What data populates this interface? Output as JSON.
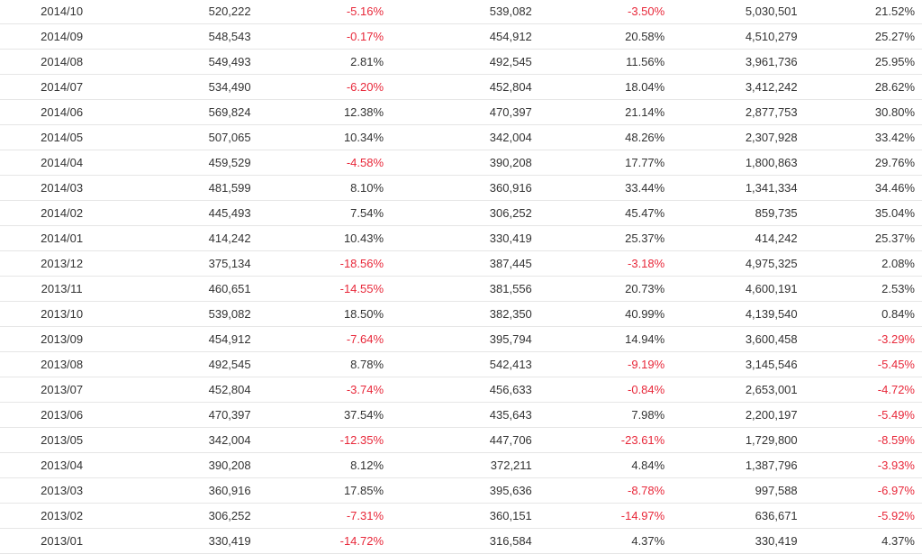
{
  "table": {
    "rows": [
      [
        "2014/10",
        "520,222",
        "-5.16%",
        "539,082",
        "-3.50%",
        "5,030,501",
        "21.52%"
      ],
      [
        "2014/09",
        "548,543",
        "-0.17%",
        "454,912",
        "20.58%",
        "4,510,279",
        "25.27%"
      ],
      [
        "2014/08",
        "549,493",
        "2.81%",
        "492,545",
        "11.56%",
        "3,961,736",
        "25.95%"
      ],
      [
        "2014/07",
        "534,490",
        "-6.20%",
        "452,804",
        "18.04%",
        "3,412,242",
        "28.62%"
      ],
      [
        "2014/06",
        "569,824",
        "12.38%",
        "470,397",
        "21.14%",
        "2,877,753",
        "30.80%"
      ],
      [
        "2014/05",
        "507,065",
        "10.34%",
        "342,004",
        "48.26%",
        "2,307,928",
        "33.42%"
      ],
      [
        "2014/04",
        "459,529",
        "-4.58%",
        "390,208",
        "17.77%",
        "1,800,863",
        "29.76%"
      ],
      [
        "2014/03",
        "481,599",
        "8.10%",
        "360,916",
        "33.44%",
        "1,341,334",
        "34.46%"
      ],
      [
        "2014/02",
        "445,493",
        "7.54%",
        "306,252",
        "45.47%",
        "859,735",
        "35.04%"
      ],
      [
        "2014/01",
        "414,242",
        "10.43%",
        "330,419",
        "25.37%",
        "414,242",
        "25.37%"
      ],
      [
        "2013/12",
        "375,134",
        "-18.56%",
        "387,445",
        "-3.18%",
        "4,975,325",
        "2.08%"
      ],
      [
        "2013/11",
        "460,651",
        "-14.55%",
        "381,556",
        "20.73%",
        "4,600,191",
        "2.53%"
      ],
      [
        "2013/10",
        "539,082",
        "18.50%",
        "382,350",
        "40.99%",
        "4,139,540",
        "0.84%"
      ],
      [
        "2013/09",
        "454,912",
        "-7.64%",
        "395,794",
        "14.94%",
        "3,600,458",
        "-3.29%"
      ],
      [
        "2013/08",
        "492,545",
        "8.78%",
        "542,413",
        "-9.19%",
        "3,145,546",
        "-5.45%"
      ],
      [
        "2013/07",
        "452,804",
        "-3.74%",
        "456,633",
        "-0.84%",
        "2,653,001",
        "-4.72%"
      ],
      [
        "2013/06",
        "470,397",
        "37.54%",
        "435,643",
        "7.98%",
        "2,200,197",
        "-5.49%"
      ],
      [
        "2013/05",
        "342,004",
        "-12.35%",
        "447,706",
        "-23.61%",
        "1,729,800",
        "-8.59%"
      ],
      [
        "2013/04",
        "390,208",
        "8.12%",
        "372,211",
        "4.84%",
        "1,387,796",
        "-3.93%"
      ],
      [
        "2013/03",
        "360,916",
        "17.85%",
        "395,636",
        "-8.78%",
        "997,588",
        "-6.97%"
      ],
      [
        "2013/02",
        "306,252",
        "-7.31%",
        "360,151",
        "-14.97%",
        "636,671",
        "-5.92%"
      ],
      [
        "2013/01",
        "330,419",
        "-14.72%",
        "316,584",
        "4.37%",
        "330,419",
        "4.37%"
      ]
    ]
  },
  "colors": {
    "text": "#333333",
    "negative": "#e8283a",
    "row_border": "#e6e6e6"
  }
}
